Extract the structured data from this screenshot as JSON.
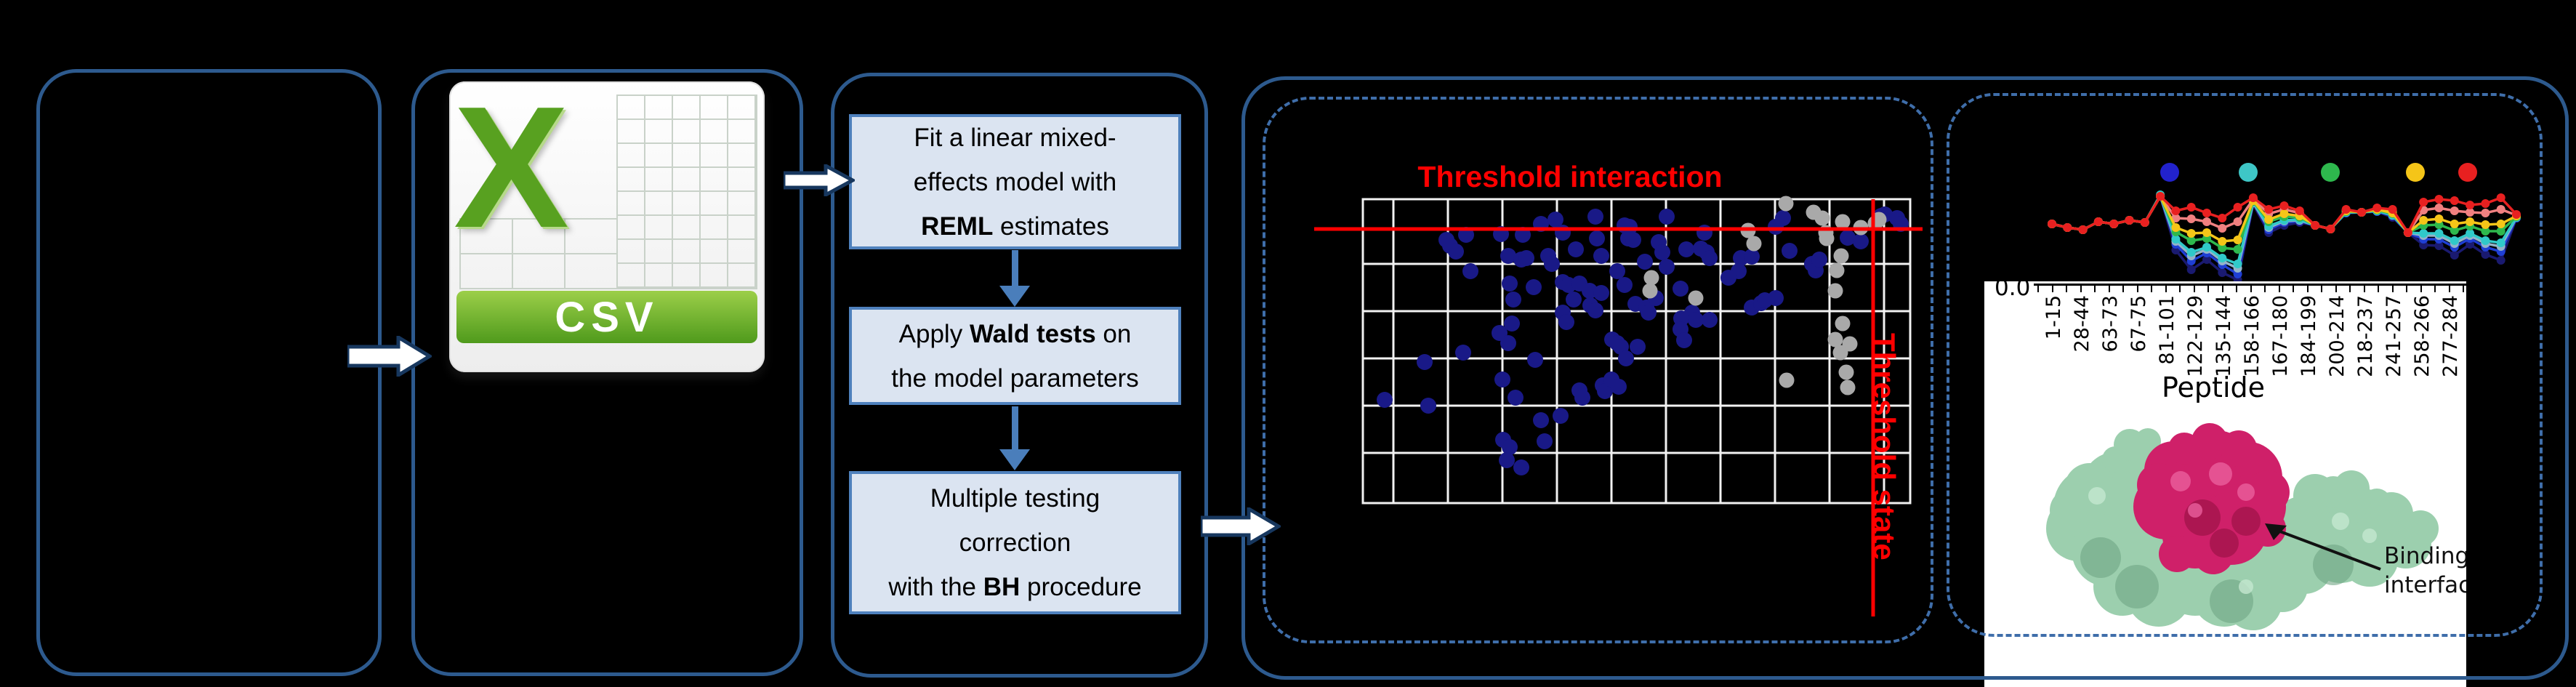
{
  "colors": {
    "panel_border": "#2d5a8e",
    "dashed_border": "#3f6eaa",
    "flow_fill": "#dbe4f1",
    "flow_border": "#4f81bd",
    "arrow_fill": "#ffffff",
    "arrow_stroke": "#17375e",
    "threshold": "#ff0000",
    "grid": "#f2f2f2",
    "dot_blue": "#191987",
    "dot_gray": "#a9a9a9",
    "csv_green": "#58a120"
  },
  "csv": {
    "letter": "X",
    "label": "CSV"
  },
  "flow": {
    "box1": {
      "l1": "Fit a linear mixed-",
      "l2": "effects model with",
      "l3_bold": "REML",
      "l3_rest": " estimates"
    },
    "box2": {
      "l1_pre": "Apply ",
      "l1_bold": "Wald tests",
      "l1_post": " on",
      "l2": "the model parameters"
    },
    "box3": {
      "l1": "Multiple testing",
      "l2": "correction",
      "l3_pre": "with the ",
      "l3_bold": "BH",
      "l3_post": " procedure"
    }
  },
  "chart_data": [
    {
      "type": "scatter",
      "title": "Threshold interaction",
      "vline_label": "Threshold state",
      "plot": {
        "x0": 1875,
        "x1": 2628,
        "y0": 274,
        "y1": 692,
        "grid_vx": [
          1917,
          1992,
          2067,
          2142,
          2217,
          2292,
          2367,
          2442,
          2517,
          2592
        ],
        "grid_hy": [
          363,
          428,
          493,
          558,
          623
        ],
        "hline_y": 315,
        "vline_x": 2577,
        "vline_y2": 848,
        "hline_x0": 1808,
        "hline_x1": 2645
      },
      "blue_points": [
        [
          1990,
          330
        ],
        [
          1995,
          338
        ],
        [
          2003,
          346
        ],
        [
          2017,
          323
        ],
        [
          2065,
          322
        ],
        [
          2095,
          323
        ],
        [
          2120,
          308
        ],
        [
          2140,
          302
        ],
        [
          2150,
          320
        ],
        [
          2195,
          298
        ],
        [
          2075,
          352
        ],
        [
          2093,
          357
        ],
        [
          2100,
          355
        ],
        [
          2130,
          352
        ],
        [
          2135,
          363
        ],
        [
          2168,
          343
        ],
        [
          2197,
          328
        ],
        [
          2203,
          352
        ],
        [
          2023,
          373
        ],
        [
          2077,
          390
        ],
        [
          2110,
          395
        ],
        [
          2082,
          412
        ],
        [
          2150,
          388
        ],
        [
          2158,
          392
        ],
        [
          2173,
          390
        ],
        [
          2165,
          412
        ],
        [
          2187,
          400
        ],
        [
          2203,
          403
        ],
        [
          2188,
          420
        ],
        [
          2195,
          427
        ],
        [
          2150,
          430
        ],
        [
          2155,
          443
        ],
        [
          2080,
          445
        ],
        [
          2063,
          458
        ],
        [
          2075,
          472
        ],
        [
          2013,
          485
        ],
        [
          1960,
          498
        ],
        [
          2112,
          495
        ],
        [
          2067,
          522
        ],
        [
          2085,
          547
        ],
        [
          2173,
          537
        ],
        [
          2177,
          547
        ],
        [
          1905,
          550
        ],
        [
          1965,
          558
        ],
        [
          2120,
          578
        ],
        [
          2147,
          572
        ],
        [
          2068,
          605
        ],
        [
          2077,
          615
        ],
        [
          2125,
          607
        ],
        [
          2073,
          633
        ],
        [
          2093,
          643
        ],
        [
          2205,
          530
        ],
        [
          2208,
          538
        ],
        [
          2235,
          310
        ],
        [
          2242,
          312
        ],
        [
          2293,
          298
        ],
        [
          2240,
          328
        ],
        [
          2247,
          330
        ],
        [
          2282,
          333
        ],
        [
          2287,
          347
        ],
        [
          2293,
          367
        ],
        [
          2263,
          360
        ],
        [
          2225,
          373
        ],
        [
          2235,
          392
        ],
        [
          2250,
          418
        ],
        [
          2265,
          423
        ],
        [
          2268,
          430
        ],
        [
          2278,
          410
        ],
        [
          2312,
          397
        ],
        [
          2320,
          343
        ],
        [
          2340,
          342
        ],
        [
          2345,
          320
        ],
        [
          2348,
          347
        ],
        [
          2352,
          355
        ],
        [
          2395,
          355
        ],
        [
          2410,
          353
        ],
        [
          2392,
          373
        ],
        [
          2378,
          382
        ],
        [
          2410,
          423
        ],
        [
          2423,
          417
        ],
        [
          2428,
          413
        ],
        [
          2443,
          410
        ],
        [
          2453,
          300
        ],
        [
          2443,
          312
        ],
        [
          2462,
          345
        ],
        [
          2493,
          363
        ],
        [
          2498,
          372
        ],
        [
          2503,
          357
        ],
        [
          2328,
          430
        ],
        [
          2313,
          438
        ],
        [
          2333,
          440
        ],
        [
          2352,
          440
        ],
        [
          2312,
          453
        ],
        [
          2317,
          468
        ],
        [
          2218,
          467
        ],
        [
          2225,
          472
        ],
        [
          2230,
          477
        ],
        [
          2253,
          477
        ],
        [
          2237,
          493
        ],
        [
          2217,
          522
        ],
        [
          2227,
          532
        ],
        [
          2588,
          297
        ],
        [
          2593,
          295
        ],
        [
          2542,
          327
        ],
        [
          2560,
          332
        ],
        [
          2610,
          300
        ],
        [
          2615,
          308
        ]
      ],
      "gray_points": [
        [
          2495,
          292
        ],
        [
          2507,
          300
        ],
        [
          2535,
          305
        ],
        [
          2512,
          320
        ],
        [
          2513,
          328
        ],
        [
          2560,
          313
        ],
        [
          2580,
          307
        ],
        [
          2585,
          302
        ],
        [
          2405,
          317
        ],
        [
          2413,
          335
        ],
        [
          2533,
          352
        ],
        [
          2527,
          372
        ],
        [
          2525,
          400
        ],
        [
          2272,
          382
        ],
        [
          2270,
          400
        ],
        [
          2333,
          410
        ],
        [
          2535,
          445
        ],
        [
          2525,
          467
        ],
        [
          2545,
          473
        ],
        [
          2532,
          485
        ],
        [
          2540,
          512
        ],
        [
          2542,
          533
        ],
        [
          2458,
          523
        ],
        [
          2457,
          280
        ]
      ]
    },
    {
      "type": "line",
      "x_start": 2823,
      "x_step": 21.3,
      "axis": {
        "spine_y": 392,
        "tick_x0": 2803,
        "tick_step": 19.5,
        "tick_count": 31,
        "label_x0": 2823,
        "label_step": 39,
        "ytick": "0.0",
        "xlabel": "Peptide"
      },
      "categories": [
        "1-15",
        "28-44",
        "63-73",
        "67-75",
        "81-101",
        "122-129",
        "135-144",
        "158-166",
        "167-180",
        "184-199",
        "200-214",
        "218-237",
        "241-257",
        "258-266",
        "277-284"
      ],
      "legend": {
        "y": 237,
        "r": 13,
        "x": [
          2985,
          3093,
          3206,
          3323,
          3395
        ],
        "colors": [
          "#2222cc",
          "#3ec6c6",
          "#2eb84d",
          "#f5c518",
          "#e82020"
        ]
      },
      "series": [
        {
          "name": "navy",
          "color": "#1a1a70",
          "y": [
            308,
            313,
            316,
            305,
            308,
            303,
            306,
            270,
            344,
            371,
            357,
            375,
            385,
            281,
            320,
            310,
            306,
            310,
            315,
            293,
            292,
            291,
            299,
            320,
            337,
            338,
            351,
            336,
            350,
            358,
            300
          ]
        },
        {
          "name": "blue",
          "color": "#1f3fd4",
          "y": [
            308,
            313,
            316,
            305,
            308,
            303,
            306,
            270,
            336,
            359,
            348,
            364,
            377,
            279,
            316,
            306,
            304,
            310,
            315,
            293,
            292,
            291,
            297,
            320,
            329,
            329,
            340,
            328,
            340,
            346,
            300
          ]
        },
        {
          "name": "steel",
          "color": "#93b3c9",
          "y": [
            308,
            313,
            316,
            305,
            308,
            303,
            306,
            270,
            332,
            352,
            343,
            359,
            369,
            279,
            313,
            304,
            303,
            310,
            315,
            292,
            292,
            290,
            296,
            320,
            324,
            324,
            335,
            324,
            335,
            339,
            299
          ]
        },
        {
          "name": "cyan",
          "color": "#30c9c9",
          "y": [
            308,
            313,
            316,
            305,
            308,
            303,
            306,
            268,
            329,
            347,
            340,
            355,
            363,
            278,
            311,
            303,
            302,
            310,
            315,
            292,
            292,
            290,
            296,
            320,
            321,
            321,
            331,
            321,
            331,
            334,
            299
          ]
        },
        {
          "name": "green",
          "color": "#2eb84d",
          "y": [
            308,
            313,
            316,
            305,
            308,
            303,
            306,
            270,
            319,
            331,
            328,
            341,
            343,
            277,
            305,
            298,
            299,
            310,
            315,
            291,
            292,
            289,
            294,
            320,
            310,
            309,
            317,
            311,
            318,
            318,
            298
          ]
        },
        {
          "name": "salmon",
          "color": "#f08080",
          "y": [
            308,
            313,
            316,
            305,
            308,
            303,
            306,
            270,
            300,
            301,
            305,
            314,
            305,
            274,
            294,
            288,
            293,
            310,
            315,
            289,
            292,
            287,
            290,
            320,
            289,
            286,
            290,
            292,
            293,
            288,
            296
          ]
        },
        {
          "name": "yellow",
          "color": "#f5c518",
          "y": [
            308,
            313,
            316,
            305,
            308,
            303,
            306,
            270,
            313,
            321,
            320,
            332,
            330,
            276,
            302,
            294,
            297,
            310,
            315,
            290,
            292,
            288,
            293,
            320,
            303,
            301,
            308,
            305,
            309,
            308,
            297
          ]
        },
        {
          "name": "red",
          "color": "#e82020",
          "y": [
            308,
            313,
            316,
            305,
            308,
            303,
            306,
            270,
            290,
            285,
            293,
            300,
            285,
            272,
            288,
            283,
            290,
            310,
            315,
            288,
            292,
            286,
            288,
            320,
            278,
            274,
            276,
            282,
            280,
            272,
            295
          ]
        }
      ]
    }
  ],
  "protein": {
    "label_line1": "Binding",
    "label_line2": "interface",
    "green": "#9ccfae",
    "green_dark": "#6fa583",
    "green_light": "#c4e7cf",
    "pink": "#cf2069",
    "pink_dark": "#9c1247",
    "pink_light": "#ea5f9c"
  }
}
